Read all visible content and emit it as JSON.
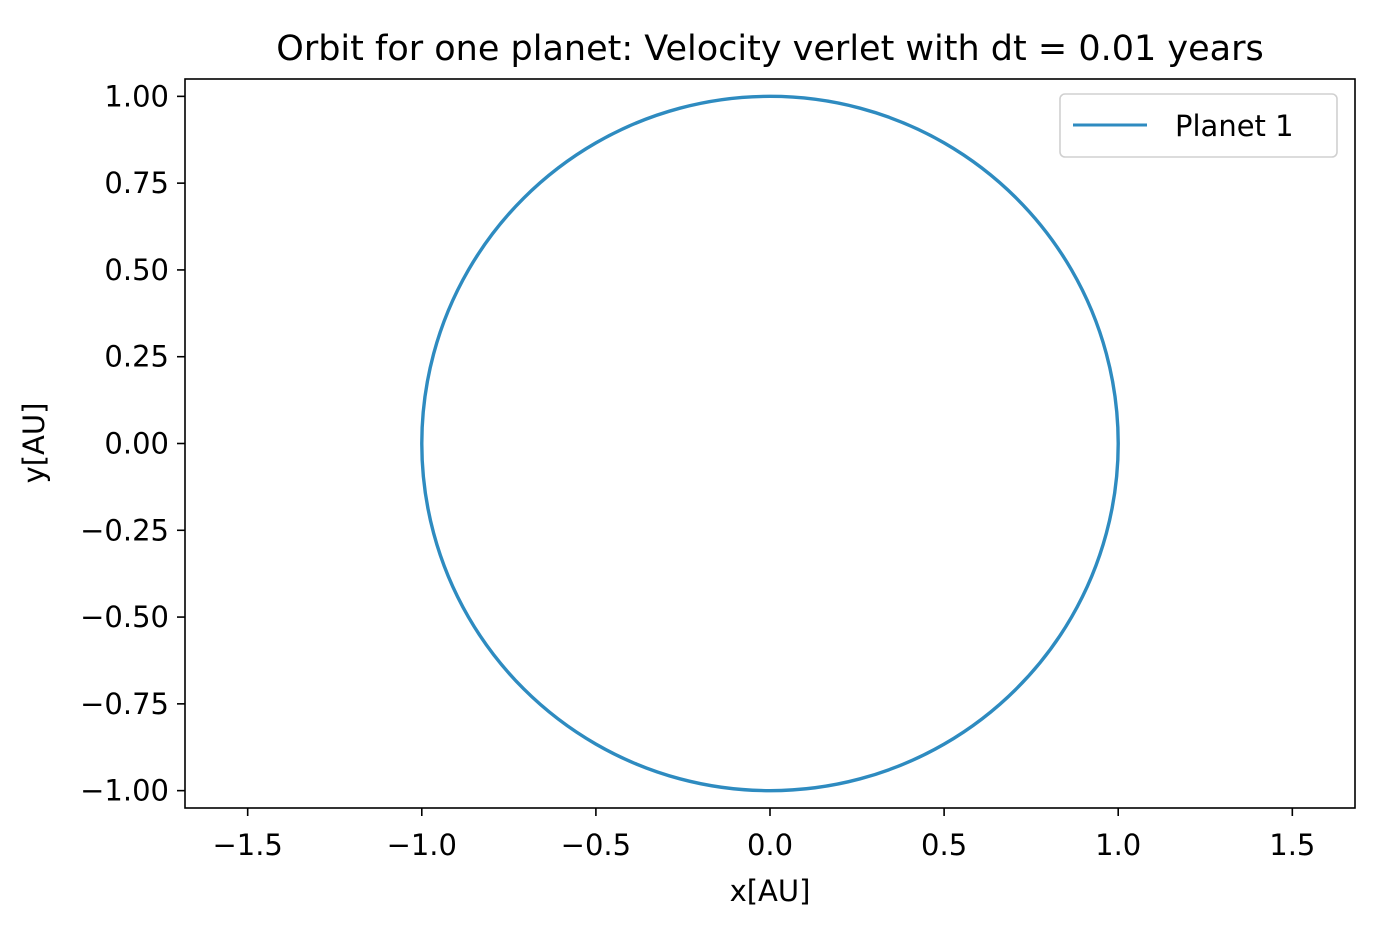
{
  "chart_data": {
    "type": "line",
    "title": "Orbit for one planet: Velocity verlet with dt = 0.01 years",
    "xlabel": "x[AU]",
    "ylabel": "y[AU]",
    "xlim": [
      -1.68,
      1.68
    ],
    "ylim": [
      -1.05,
      1.05
    ],
    "x_ticks": [
      -1.5,
      -1.0,
      -0.5,
      0.0,
      0.5,
      1.0,
      1.5
    ],
    "x_tick_labels": [
      "−1.5",
      "−1.0",
      "−0.5",
      "0.0",
      "0.5",
      "1.0",
      "1.5"
    ],
    "y_ticks": [
      1.0,
      0.75,
      0.5,
      0.25,
      0.0,
      -0.25,
      -0.5,
      -0.75,
      -1.0
    ],
    "y_tick_labels": [
      "1.00",
      "0.75",
      "0.50",
      "0.25",
      "0.00",
      "−0.25",
      "−0.50",
      "−0.75",
      "−1.00"
    ],
    "grid": false,
    "legend_position": "top-right",
    "series": [
      {
        "name": "Planet 1",
        "color": "#2e8bc0",
        "x": [
          1.0,
          0.9659,
          0.866,
          0.7071,
          0.5,
          0.2588,
          0.0,
          -0.2588,
          -0.5,
          -0.7071,
          -0.866,
          -0.9659,
          -1.0,
          -0.9659,
          -0.866,
          -0.7071,
          -0.5,
          -0.2588,
          0.0,
          0.2588,
          0.5,
          0.7071,
          0.866,
          0.9659,
          1.0
        ],
        "y": [
          0.0,
          0.2588,
          0.5,
          0.7071,
          0.866,
          0.9659,
          1.0,
          0.9659,
          0.866,
          0.7071,
          0.5,
          0.2588,
          0.0,
          -0.2588,
          -0.5,
          -0.7071,
          -0.866,
          -0.9659,
          -1.0,
          -0.9659,
          -0.866,
          -0.7071,
          -0.5,
          -0.2588,
          0.0
        ]
      }
    ]
  }
}
